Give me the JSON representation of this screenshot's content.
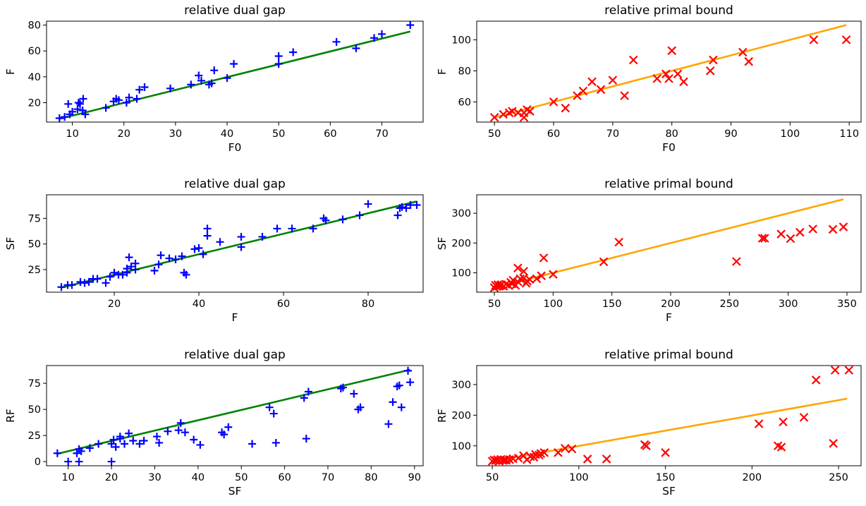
{
  "colors": {
    "dual_marker": "#0000ff",
    "dual_line": "#008000",
    "primal_marker": "#ff0000",
    "primal_line": "#ffa500"
  },
  "chart_data": [
    {
      "type": "scatter",
      "title": "relative dual gap",
      "xlabel": "F0",
      "ylabel": "F",
      "xlim": [
        5,
        78
      ],
      "ylim": [
        5,
        83
      ],
      "xticks": [
        10,
        20,
        30,
        40,
        50,
        60,
        70
      ],
      "yticks": [
        20,
        40,
        60,
        80
      ],
      "marker": "plus",
      "marker_color": "#0000ff",
      "line_color": "#008000",
      "fit_line": [
        [
          7.5,
          7.5
        ],
        [
          75.5,
          75
        ]
      ],
      "x": [
        7.5,
        8.5,
        9.5,
        9.2,
        10,
        11,
        11.2,
        11.5,
        12,
        12.1,
        12.5,
        16.5,
        18,
        18.5,
        19,
        20.5,
        21,
        22.5,
        23,
        24,
        29,
        33,
        34.5,
        35,
        36.5,
        37,
        37.5,
        40,
        41.3,
        50,
        50,
        52.8,
        61.2,
        65,
        68.5,
        70,
        75.5
      ],
      "y": [
        8,
        9,
        11,
        19,
        13,
        15,
        20,
        19,
        14,
        23,
        11,
        16,
        21,
        23,
        22,
        20,
        24,
        23,
        30,
        32,
        31,
        34,
        41,
        37,
        34,
        35,
        45,
        39,
        50,
        50,
        56,
        59,
        67,
        62,
        70,
        73,
        80
      ]
    },
    {
      "type": "scatter",
      "title": "relative primal bound",
      "xlabel": "F0",
      "ylabel": "F",
      "xlim": [
        47,
        112
      ],
      "ylim": [
        47,
        112
      ],
      "xticks": [
        50,
        60,
        70,
        80,
        90,
        100,
        110
      ],
      "yticks": [
        60,
        80,
        100
      ],
      "marker": "x",
      "marker_color": "#ff0000",
      "line_color": "#ffa500",
      "fit_line": [
        [
          50,
          50
        ],
        [
          109.5,
          109.5
        ]
      ],
      "x": [
        50,
        51.5,
        52.5,
        53,
        54,
        55,
        55,
        55.5,
        56,
        60,
        62,
        64,
        65,
        66.5,
        68,
        70,
        72,
        73.5,
        77.5,
        79,
        79.5,
        80,
        81,
        82,
        86.5,
        87,
        92,
        93,
        104,
        109.5
      ],
      "y": [
        50,
        52,
        53,
        54,
        53,
        50,
        53,
        55,
        54,
        60,
        56,
        64,
        67,
        73,
        68,
        74,
        64,
        87,
        75,
        78,
        75,
        93,
        78,
        73,
        80,
        87,
        92,
        86,
        100,
        100
      ]
    },
    {
      "type": "scatter",
      "title": "relative dual gap",
      "xlabel": "F",
      "ylabel": "SF",
      "xlim": [
        4,
        93
      ],
      "ylim": [
        3,
        98
      ],
      "xticks": [
        20,
        40,
        60,
        80
      ],
      "yticks": [
        25,
        50,
        75
      ],
      "marker": "plus",
      "marker_color": "#0000ff",
      "line_color": "#008000",
      "fit_line": [
        [
          7.5,
          7.5
        ],
        [
          91.5,
          91.5
        ]
      ],
      "x": [
        7.5,
        9,
        10,
        12,
        13,
        14,
        15,
        16,
        18,
        19,
        20,
        21,
        22,
        23,
        23,
        23.5,
        24,
        25,
        25,
        29.5,
        30.5,
        31,
        33,
        34.5,
        36,
        36.5,
        37,
        39,
        40,
        41,
        42,
        42,
        45,
        50,
        50,
        55,
        58.5,
        62,
        67,
        69.5,
        70,
        74,
        78,
        80,
        87,
        87.5,
        88,
        89,
        90,
        91.5
      ],
      "y": [
        8,
        10,
        10,
        13,
        12,
        13,
        16,
        16,
        12,
        18,
        22,
        20,
        20,
        22,
        26,
        37,
        28,
        25,
        31,
        24,
        30,
        39,
        36,
        35,
        38,
        22,
        20,
        45,
        46,
        40,
        58,
        65,
        52,
        47,
        57,
        57,
        65,
        65,
        65,
        75,
        73,
        74,
        78,
        89,
        78,
        85,
        86,
        85,
        88,
        88
      ]
    },
    {
      "type": "scatter",
      "title": "relative primal bound",
      "xlabel": "F",
      "ylabel": "SF",
      "xlim": [
        35,
        362
      ],
      "ylim": [
        35,
        362
      ],
      "xticks": [
        50,
        100,
        150,
        200,
        250,
        300,
        350
      ],
      "yticks": [
        100,
        200,
        300
      ],
      "marker": "x",
      "marker_color": "#ff0000",
      "line_color": "#ffa500",
      "fit_line": [
        [
          50,
          50
        ],
        [
          347,
          347
        ]
      ],
      "x": [
        50,
        51,
        52,
        53,
        54,
        55,
        56,
        58,
        60,
        62,
        64,
        65,
        66,
        68,
        70,
        70,
        72,
        75,
        75,
        77,
        78,
        80,
        86,
        90,
        92,
        100,
        143,
        156,
        256,
        278,
        280,
        294,
        302,
        310,
        321,
        338,
        347
      ],
      "y": [
        50,
        58,
        54,
        60,
        55,
        57,
        60,
        55,
        62,
        58,
        68,
        63,
        75,
        58,
        116,
        70,
        80,
        105,
        82,
        65,
        72,
        78,
        80,
        90,
        150,
        95,
        137,
        203,
        138,
        216,
        216,
        230,
        215,
        236,
        247,
        246,
        254
      ]
    },
    {
      "type": "scatter",
      "title": "relative dual gap",
      "xlabel": "SF",
      "ylabel": "RF",
      "xlim": [
        5,
        92
      ],
      "ylim": [
        -4,
        92
      ],
      "xticks": [
        10,
        20,
        30,
        40,
        50,
        60,
        70,
        80,
        90
      ],
      "yticks": [
        0,
        25,
        50,
        75
      ],
      "marker": "plus",
      "marker_color": "#0000ff",
      "line_color": "#008000",
      "fit_line": [
        [
          7.5,
          7.5
        ],
        [
          89,
          88
        ]
      ],
      "x": [
        7.5,
        10,
        12,
        12.5,
        12.5,
        13,
        15,
        17,
        20,
        20,
        20.5,
        21,
        22,
        22,
        23,
        24,
        25,
        26.5,
        27.5,
        30.5,
        31,
        33,
        35.5,
        36,
        37,
        39,
        40.5,
        45.5,
        46,
        47,
        52.5,
        56.5,
        57.5,
        58,
        64.5,
        65,
        65.5,
        73,
        73.5,
        76,
        77,
        77.5,
        84,
        85,
        86,
        86.5,
        87,
        88.5,
        89
      ],
      "y": [
        8,
        0,
        8,
        0,
        12,
        10,
        13,
        17,
        0,
        17,
        21,
        14,
        22,
        24,
        17,
        27,
        20,
        17,
        20,
        24,
        18,
        29,
        30,
        37,
        28,
        21,
        16,
        28,
        26,
        33,
        17,
        52,
        46,
        18,
        61,
        22,
        67,
        70,
        71,
        65,
        50,
        52,
        36,
        57,
        72,
        73,
        52,
        87,
        76
      ]
    },
    {
      "type": "scatter",
      "title": "relative primal bound",
      "xlabel": "SF",
      "ylabel": "RF",
      "xlim": [
        41,
        263
      ],
      "ylim": [
        35,
        362
      ],
      "xticks": [
        50,
        100,
        150,
        200,
        250
      ],
      "yticks": [
        100,
        200,
        300
      ],
      "marker": "x",
      "marker_color": "#ff0000",
      "line_color": "#ffa500",
      "fit_line": [
        [
          50,
          50
        ],
        [
          255,
          254
        ]
      ],
      "x": [
        50,
        51,
        52,
        53,
        54,
        55,
        56,
        57,
        58,
        60,
        62,
        65,
        68,
        70,
        72,
        74,
        75,
        77,
        78,
        80,
        88,
        92,
        96,
        105,
        116,
        138,
        139,
        150,
        204,
        215,
        217,
        218,
        230,
        237,
        247,
        248,
        256
      ],
      "y": [
        50,
        54,
        52,
        55,
        50,
        56,
        52,
        54,
        53,
        55,
        58,
        60,
        68,
        55,
        65,
        63,
        72,
        70,
        75,
        78,
        78,
        92,
        90,
        57,
        57,
        104,
        100,
        78,
        172,
        100,
        96,
        178,
        193,
        315,
        108,
        347,
        347
      ]
    }
  ]
}
